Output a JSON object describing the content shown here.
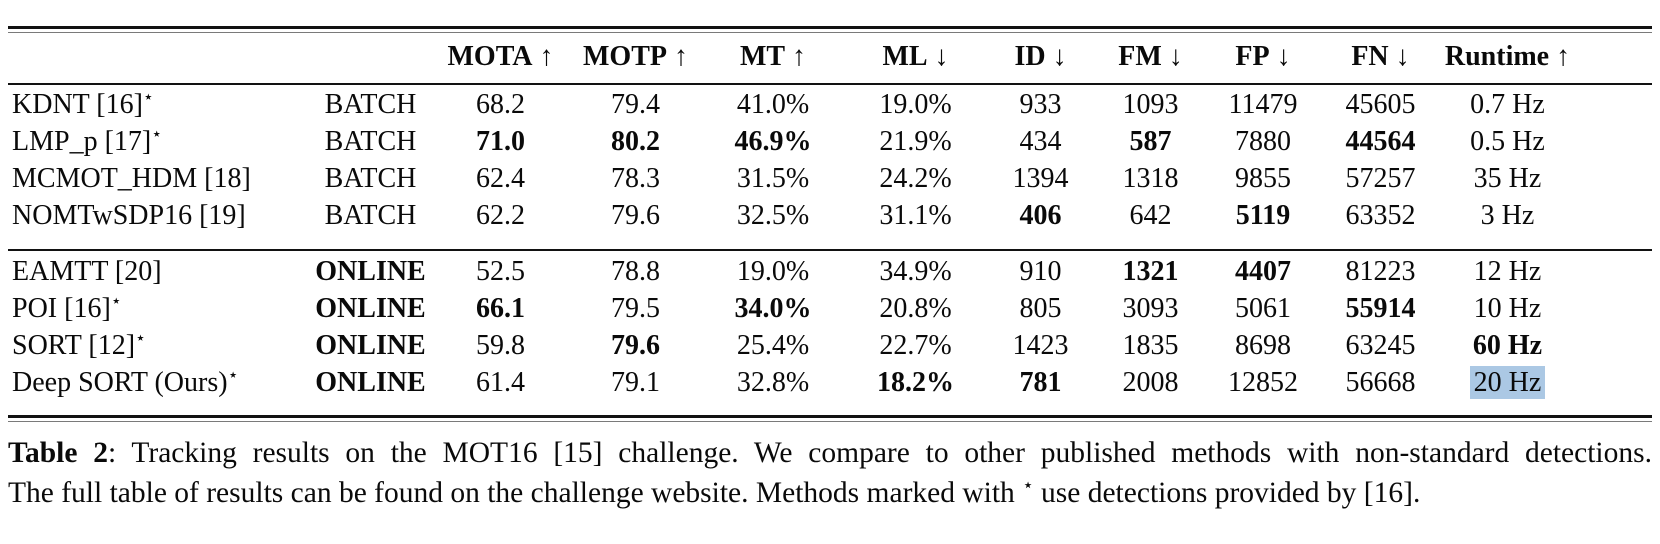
{
  "page": {
    "background": "#ffffff",
    "text_color": "#0a0a0a",
    "rule_color": "#121212",
    "selection_color": "#abc8e4"
  },
  "table": {
    "star_glyph": "⋆",
    "columns": [
      {
        "label": "",
        "arrow": ""
      },
      {
        "label": "",
        "arrow": ""
      },
      {
        "label": "MOTA",
        "arrow": "↑"
      },
      {
        "label": "MOTP",
        "arrow": "↑"
      },
      {
        "label": "MT",
        "arrow": "↑"
      },
      {
        "label": "ML",
        "arrow": "↓"
      },
      {
        "label": "ID",
        "arrow": "↓"
      },
      {
        "label": "FM",
        "arrow": "↓"
      },
      {
        "label": "FP",
        "arrow": "↓"
      },
      {
        "label": "FN",
        "arrow": "↓"
      },
      {
        "label": "Runtime",
        "arrow": "↑"
      }
    ],
    "groups": [
      {
        "name": "batch",
        "rows": [
          {
            "method": "KDNT [16]",
            "star": true,
            "mode": "BATCH",
            "mode_bold": false,
            "cells": [
              {
                "v": "68.2"
              },
              {
                "v": "79.4"
              },
              {
                "v": "41.0%"
              },
              {
                "v": "19.0%"
              },
              {
                "v": "933"
              },
              {
                "v": "1093"
              },
              {
                "v": "11479"
              },
              {
                "v": "45605"
              },
              {
                "v": "0.7 Hz"
              }
            ]
          },
          {
            "method": "LMP_p [17]",
            "star": true,
            "mode": "BATCH",
            "mode_bold": false,
            "cells": [
              {
                "v": "71.0",
                "bold": true
              },
              {
                "v": "80.2",
                "bold": true
              },
              {
                "v": "46.9%",
                "bold": true
              },
              {
                "v": "21.9%"
              },
              {
                "v": "434"
              },
              {
                "v": "587",
                "bold": true
              },
              {
                "v": "7880"
              },
              {
                "v": "44564",
                "bold": true
              },
              {
                "v": "0.5 Hz"
              }
            ]
          },
          {
            "method": "MCMOT_HDM [18]",
            "star": false,
            "mode": "BATCH",
            "mode_bold": false,
            "cells": [
              {
                "v": "62.4"
              },
              {
                "v": "78.3"
              },
              {
                "v": "31.5%"
              },
              {
                "v": "24.2%"
              },
              {
                "v": "1394"
              },
              {
                "v": "1318"
              },
              {
                "v": "9855"
              },
              {
                "v": "57257"
              },
              {
                "v": "35 Hz"
              }
            ]
          },
          {
            "method": "NOMTwSDP16 [19]",
            "star": false,
            "mode": "BATCH",
            "mode_bold": false,
            "cells": [
              {
                "v": "62.2"
              },
              {
                "v": "79.6"
              },
              {
                "v": "32.5%"
              },
              {
                "v": "31.1%"
              },
              {
                "v": "406",
                "bold": true
              },
              {
                "v": "642"
              },
              {
                "v": "5119",
                "bold": true
              },
              {
                "v": "63352"
              },
              {
                "v": "3 Hz"
              }
            ]
          }
        ]
      },
      {
        "name": "online",
        "rows": [
          {
            "method": "EAMTT [20]",
            "star": false,
            "mode": "ONLINE",
            "mode_bold": true,
            "cells": [
              {
                "v": "52.5"
              },
              {
                "v": "78.8"
              },
              {
                "v": "19.0%"
              },
              {
                "v": "34.9%"
              },
              {
                "v": "910"
              },
              {
                "v": "1321",
                "bold": true
              },
              {
                "v": "4407",
                "bold": true
              },
              {
                "v": "81223"
              },
              {
                "v": "12 Hz"
              }
            ]
          },
          {
            "method": "POI [16]",
            "star": true,
            "mode": "ONLINE",
            "mode_bold": true,
            "cells": [
              {
                "v": "66.1",
                "bold": true
              },
              {
                "v": "79.5"
              },
              {
                "v": "34.0%",
                "bold": true
              },
              {
                "v": "20.8%"
              },
              {
                "v": "805"
              },
              {
                "v": "3093"
              },
              {
                "v": "5061"
              },
              {
                "v": "55914",
                "bold": true
              },
              {
                "v": "10 Hz"
              }
            ]
          },
          {
            "method": "SORT [12]",
            "star": true,
            "mode": "ONLINE",
            "mode_bold": true,
            "cells": [
              {
                "v": "59.8"
              },
              {
                "v": "79.6",
                "bold": true
              },
              {
                "v": "25.4%"
              },
              {
                "v": "22.7%"
              },
              {
                "v": "1423"
              },
              {
                "v": "1835"
              },
              {
                "v": "8698"
              },
              {
                "v": "63245"
              },
              {
                "v": "60 Hz",
                "bold": true
              }
            ]
          },
          {
            "method": "Deep SORT (Ours)",
            "star": true,
            "mode": "ONLINE",
            "mode_bold": true,
            "cells": [
              {
                "v": "61.4"
              },
              {
                "v": "79.1"
              },
              {
                "v": "32.8%"
              },
              {
                "v": "18.2%",
                "bold": true
              },
              {
                "v": "781",
                "bold": true
              },
              {
                "v": "2008"
              },
              {
                "v": "12852"
              },
              {
                "v": "56668"
              },
              {
                "v": "20 Hz",
                "highlight": true
              }
            ]
          }
        ]
      }
    ]
  },
  "caption": {
    "label": "Table 2",
    "line1_after_label": ": Tracking results on the MOT16 [15] challenge. We compare to other published methods with non-standard detections.",
    "line2_before_star": "The full table of results can be found on the challenge website. Methods marked with ",
    "star": "⋆",
    "line2_after_star": " use detections provided by [16]."
  }
}
